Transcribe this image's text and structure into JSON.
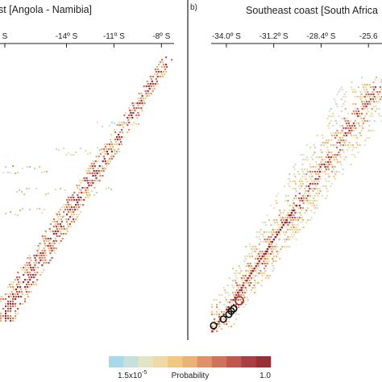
{
  "chart_data": [
    {
      "type": "heatmap",
      "title": "st [Angola - Namibia]",
      "panel_label": "",
      "x_tick_labels": [
        "S",
        "-14º S",
        "-11º S",
        "-8º S"
      ],
      "x_tick_values": [
        -17,
        -14,
        -11,
        -8
      ],
      "xlim": [
        -18.2,
        -7.2
      ],
      "description_segments": [
        {
          "x_start": -18.2,
          "x_end": -16.0,
          "density": 0.55,
          "intensity": 0.55
        },
        {
          "x_start": -16.0,
          "x_end": -13.5,
          "density": 0.45,
          "intensity": 0.5
        },
        {
          "x_start": -13.5,
          "x_end": -10.5,
          "density": 0.35,
          "intensity": 0.45
        },
        {
          "x_start": -10.5,
          "x_end": -7.2,
          "density": 0.3,
          "intensity": 0.55
        }
      ]
    },
    {
      "type": "heatmap",
      "title": "Southeast coast [South Africa",
      "panel_label": "b)",
      "x_tick_labels": [
        "-34.0º S",
        "-31.2º S",
        "-28.4º S",
        "-25.6"
      ],
      "x_tick_values": [
        -34.0,
        -31.2,
        -28.4,
        -25.6
      ],
      "xlim": [
        -34.9,
        -24.8
      ],
      "circled_points": [
        {
          "x": -34.5,
          "y": -34.5,
          "color": "black"
        },
        {
          "x": -34.2,
          "y": -34.2,
          "color": "black"
        },
        {
          "x": -33.9,
          "y": -33.9,
          "color": "black"
        },
        {
          "x": -33.75,
          "y": -33.75,
          "color": "black"
        },
        {
          "x": -33.6,
          "y": -33.6,
          "color": "black"
        },
        {
          "x": -33.2,
          "y": -33.2,
          "color": "darkred"
        }
      ]
    }
  ],
  "colorbar": {
    "min_label": "1.5x10",
    "min_exponent": "-5",
    "max_label": "1.0",
    "title": "Probability",
    "colors": [
      "#a9d8ea",
      "#c6e0dc",
      "#e3e4c6",
      "#f0d9a4",
      "#f0c882",
      "#ebb276",
      "#df9168",
      "#d0735b",
      "#c05852",
      "#ab3e42",
      "#962f36"
    ]
  }
}
